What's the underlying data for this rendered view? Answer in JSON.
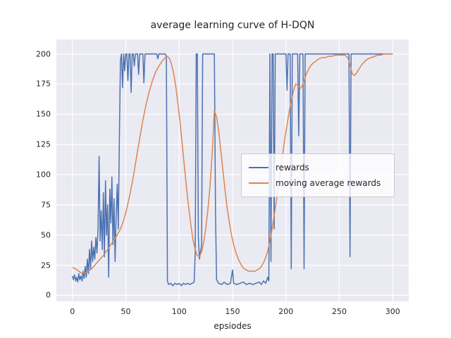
{
  "figure": {
    "title": "average learning curve of H-DQN",
    "xlabel": "epsiodes"
  },
  "chart_data": {
    "type": "line",
    "title": "average learning curve of H-DQN",
    "xlabel": "epsiodes",
    "ylabel": "",
    "xlim": [
      -15,
      315
    ],
    "ylim": [
      -5,
      212
    ],
    "xticks": [
      0,
      50,
      100,
      150,
      200,
      250,
      300
    ],
    "yticks": [
      0,
      25,
      50,
      75,
      100,
      125,
      150,
      175,
      200
    ],
    "grid": true,
    "background": "#eaeaf2",
    "grid_color": "#ffffff",
    "legend": {
      "position": "center-right",
      "entries": [
        "rewards",
        "moving average rewards"
      ]
    },
    "series": [
      {
        "name": "rewards",
        "color": "#4c72b0",
        "points": [
          [
            0,
            16
          ],
          [
            1,
            13
          ],
          [
            2,
            17
          ],
          [
            3,
            12
          ],
          [
            4,
            15
          ],
          [
            5,
            11
          ],
          [
            6,
            18
          ],
          [
            7,
            13
          ],
          [
            8,
            16
          ],
          [
            9,
            12
          ],
          [
            10,
            20
          ],
          [
            11,
            14
          ],
          [
            12,
            24
          ],
          [
            13,
            15
          ],
          [
            14,
            30
          ],
          [
            15,
            18
          ],
          [
            16,
            38
          ],
          [
            17,
            22
          ],
          [
            18,
            45
          ],
          [
            19,
            28
          ],
          [
            20,
            40
          ],
          [
            21,
            30
          ],
          [
            22,
            48
          ],
          [
            23,
            35
          ],
          [
            24,
            55
          ],
          [
            25,
            115
          ],
          [
            26,
            45
          ],
          [
            27,
            70
          ],
          [
            28,
            38
          ],
          [
            29,
            85
          ],
          [
            30,
            32
          ],
          [
            31,
            95
          ],
          [
            32,
            50
          ],
          [
            33,
            75
          ],
          [
            34,
            15
          ],
          [
            35,
            88
          ],
          [
            36,
            60
          ],
          [
            37,
            98
          ],
          [
            38,
            42
          ],
          [
            39,
            80
          ],
          [
            40,
            28
          ],
          [
            41,
            65
          ],
          [
            42,
            92
          ],
          [
            43,
            55
          ],
          [
            44,
            130
          ],
          [
            45,
            195
          ],
          [
            46,
            200
          ],
          [
            47,
            172
          ],
          [
            48,
            200
          ],
          [
            49,
            186
          ],
          [
            50,
            200
          ],
          [
            51,
            200
          ],
          [
            52,
            178
          ],
          [
            53,
            200
          ],
          [
            54,
            200
          ],
          [
            55,
            168
          ],
          [
            56,
            200
          ],
          [
            57,
            200
          ],
          [
            58,
            190
          ],
          [
            59,
            200
          ],
          [
            60,
            200
          ],
          [
            61,
            200
          ],
          [
            62,
            183
          ],
          [
            63,
            200
          ],
          [
            64,
            200
          ],
          [
            65,
            200
          ],
          [
            66,
            200
          ],
          [
            67,
            176
          ],
          [
            68,
            200
          ],
          [
            69,
            200
          ],
          [
            70,
            200
          ],
          [
            71,
            200
          ],
          [
            72,
            200
          ],
          [
            73,
            200
          ],
          [
            74,
            200
          ],
          [
            75,
            200
          ],
          [
            76,
            200
          ],
          [
            77,
            200
          ],
          [
            78,
            200
          ],
          [
            79,
            200
          ],
          [
            80,
            196
          ],
          [
            81,
            200
          ],
          [
            82,
            200
          ],
          [
            83,
            200
          ],
          [
            84,
            200
          ],
          [
            85,
            200
          ],
          [
            86,
            200
          ],
          [
            87,
            200
          ],
          [
            88,
            198
          ],
          [
            89,
            12
          ],
          [
            90,
            9
          ],
          [
            92,
            10
          ],
          [
            94,
            8
          ],
          [
            96,
            10
          ],
          [
            98,
            9
          ],
          [
            100,
            10
          ],
          [
            102,
            8
          ],
          [
            104,
            10
          ],
          [
            106,
            9
          ],
          [
            108,
            10
          ],
          [
            110,
            9
          ],
          [
            112,
            10
          ],
          [
            114,
            11
          ],
          [
            115,
            34
          ],
          [
            116,
            200
          ],
          [
            117,
            200
          ],
          [
            118,
            48
          ],
          [
            119,
            30
          ],
          [
            120,
            36
          ],
          [
            121,
            42
          ],
          [
            122,
            200
          ],
          [
            123,
            200
          ],
          [
            125,
            200
          ],
          [
            127,
            200
          ],
          [
            129,
            200
          ],
          [
            131,
            200
          ],
          [
            133,
            200
          ],
          [
            134,
            70
          ],
          [
            135,
            13
          ],
          [
            137,
            10
          ],
          [
            140,
            9
          ],
          [
            142,
            11
          ],
          [
            145,
            9
          ],
          [
            148,
            10
          ],
          [
            150,
            21
          ],
          [
            151,
            10
          ],
          [
            154,
            9
          ],
          [
            157,
            10
          ],
          [
            160,
            11
          ],
          [
            163,
            9
          ],
          [
            166,
            10
          ],
          [
            169,
            9
          ],
          [
            172,
            10
          ],
          [
            175,
            11
          ],
          [
            177,
            9
          ],
          [
            179,
            12
          ],
          [
            181,
            10
          ],
          [
            183,
            15
          ],
          [
            184,
            12
          ],
          [
            185,
            200
          ],
          [
            186,
            28
          ],
          [
            187,
            200
          ],
          [
            188,
            200
          ],
          [
            189,
            55
          ],
          [
            190,
            200
          ],
          [
            191,
            200
          ],
          [
            192,
            200
          ],
          [
            193,
            200
          ],
          [
            194,
            200
          ],
          [
            195,
            200
          ],
          [
            196,
            200
          ],
          [
            197,
            200
          ],
          [
            198,
            200
          ],
          [
            199,
            200
          ],
          [
            200,
            200
          ],
          [
            201,
            170
          ],
          [
            202,
            200
          ],
          [
            203,
            200
          ],
          [
            204,
            200
          ],
          [
            205,
            22
          ],
          [
            206,
            200
          ],
          [
            207,
            200
          ],
          [
            208,
            200
          ],
          [
            209,
            200
          ],
          [
            210,
            200
          ],
          [
            211,
            200
          ],
          [
            212,
            132
          ],
          [
            213,
            200
          ],
          [
            214,
            200
          ],
          [
            215,
            200
          ],
          [
            216,
            200
          ],
          [
            217,
            22
          ],
          [
            218,
            200
          ],
          [
            219,
            200
          ],
          [
            220,
            200
          ],
          [
            225,
            200
          ],
          [
            230,
            200
          ],
          [
            235,
            200
          ],
          [
            240,
            200
          ],
          [
            245,
            200
          ],
          [
            250,
            200
          ],
          [
            255,
            200
          ],
          [
            258,
            200
          ],
          [
            259,
            200
          ],
          [
            260,
            32
          ],
          [
            261,
            200
          ],
          [
            262,
            200
          ],
          [
            265,
            200
          ],
          [
            270,
            200
          ],
          [
            275,
            200
          ],
          [
            280,
            200
          ],
          [
            285,
            200
          ],
          [
            290,
            200
          ],
          [
            295,
            200
          ],
          [
            300,
            200
          ]
        ]
      },
      {
        "name": "moving average rewards",
        "color": "#dd8452",
        "points": [
          [
            0,
            23
          ],
          [
            3,
            22
          ],
          [
            6,
            20
          ],
          [
            9,
            18
          ],
          [
            12,
            19
          ],
          [
            15,
            20
          ],
          [
            18,
            22
          ],
          [
            21,
            25
          ],
          [
            24,
            28
          ],
          [
            27,
            31
          ],
          [
            30,
            34
          ],
          [
            33,
            38
          ],
          [
            36,
            42
          ],
          [
            39,
            46
          ],
          [
            42,
            50
          ],
          [
            45,
            55
          ],
          [
            48,
            62
          ],
          [
            51,
            72
          ],
          [
            54,
            84
          ],
          [
            57,
            98
          ],
          [
            60,
            114
          ],
          [
            63,
            130
          ],
          [
            66,
            145
          ],
          [
            69,
            158
          ],
          [
            72,
            169
          ],
          [
            75,
            178
          ],
          [
            78,
            185
          ],
          [
            81,
            190
          ],
          [
            84,
            194
          ],
          [
            87,
            197
          ],
          [
            89,
            198
          ],
          [
            91,
            196
          ],
          [
            93,
            191
          ],
          [
            95,
            183
          ],
          [
            97,
            172
          ],
          [
            99,
            158
          ],
          [
            101,
            142
          ],
          [
            103,
            124
          ],
          [
            105,
            106
          ],
          [
            107,
            88
          ],
          [
            109,
            72
          ],
          [
            111,
            58
          ],
          [
            113,
            46
          ],
          [
            115,
            38
          ],
          [
            117,
            33
          ],
          [
            119,
            32
          ],
          [
            121,
            36
          ],
          [
            123,
            44
          ],
          [
            125,
            56
          ],
          [
            127,
            72
          ],
          [
            129,
            92
          ],
          [
            131,
            118
          ],
          [
            133,
            153
          ],
          [
            135,
            148
          ],
          [
            137,
            136
          ],
          [
            139,
            120
          ],
          [
            141,
            103
          ],
          [
            143,
            87
          ],
          [
            145,
            72
          ],
          [
            147,
            60
          ],
          [
            149,
            50
          ],
          [
            151,
            42
          ],
          [
            153,
            36
          ],
          [
            155,
            31
          ],
          [
            157,
            27
          ],
          [
            159,
            24
          ],
          [
            161,
            22
          ],
          [
            163,
            21
          ],
          [
            165,
            20
          ],
          [
            167,
            20
          ],
          [
            169,
            20
          ],
          [
            171,
            20
          ],
          [
            173,
            21
          ],
          [
            175,
            22
          ],
          [
            177,
            24
          ],
          [
            179,
            27
          ],
          [
            181,
            31
          ],
          [
            183,
            37
          ],
          [
            185,
            45
          ],
          [
            187,
            55
          ],
          [
            189,
            66
          ],
          [
            191,
            78
          ],
          [
            193,
            91
          ],
          [
            195,
            104
          ],
          [
            197,
            117
          ],
          [
            199,
            130
          ],
          [
            201,
            141
          ],
          [
            203,
            152
          ],
          [
            205,
            161
          ],
          [
            207,
            169
          ],
          [
            209,
            175
          ],
          [
            211,
            174
          ],
          [
            213,
            171
          ],
          [
            215,
            173
          ],
          [
            217,
            178
          ],
          [
            219,
            183
          ],
          [
            221,
            187
          ],
          [
            223,
            190
          ],
          [
            225,
            192
          ],
          [
            228,
            194
          ],
          [
            231,
            196
          ],
          [
            234,
            197
          ],
          [
            237,
            197
          ],
          [
            240,
            198
          ],
          [
            243,
            198
          ],
          [
            246,
            199
          ],
          [
            249,
            199
          ],
          [
            252,
            199
          ],
          [
            255,
            199
          ],
          [
            258,
            197
          ],
          [
            260,
            191
          ],
          [
            262,
            184
          ],
          [
            264,
            182
          ],
          [
            266,
            184
          ],
          [
            268,
            187
          ],
          [
            271,
            191
          ],
          [
            274,
            194
          ],
          [
            277,
            196
          ],
          [
            280,
            197
          ],
          [
            283,
            198
          ],
          [
            286,
            199
          ],
          [
            289,
            199
          ],
          [
            292,
            200
          ],
          [
            295,
            200
          ],
          [
            300,
            200
          ]
        ]
      }
    ]
  }
}
